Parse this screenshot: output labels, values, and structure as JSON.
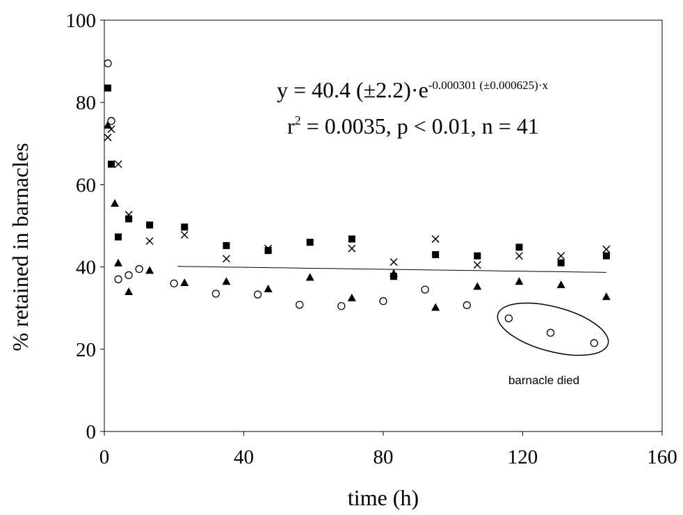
{
  "chart_data": {
    "type": "scatter",
    "title": "",
    "xlabel": "time (h)",
    "ylabel": "% retained in barnacles",
    "xlim": [
      0,
      160
    ],
    "ylim": [
      0,
      100
    ],
    "xticks": [
      0,
      40,
      80,
      120,
      160
    ],
    "yticks": [
      0,
      20,
      40,
      60,
      80,
      100
    ],
    "grid": false,
    "equation": {
      "main": "y = 40.4 (±2.2)·e",
      "exponent": "-0.000301 (±0.000625)·x",
      "stats_r": "r",
      "stats_sup": "2",
      "stats_rest": " = 0.0035, p < 0.01, n = 41"
    },
    "annotation": "barnacle died",
    "annotation_points": [
      [
        116,
        27.5
      ],
      [
        128,
        24
      ],
      [
        140.5,
        21.5
      ]
    ],
    "fit": {
      "a": 40.4,
      "b": -0.000301,
      "x_start": 21,
      "x_end": 144
    },
    "series": [
      {
        "marker": "circle",
        "points": [
          [
            1,
            89.5
          ],
          [
            2,
            75.5
          ],
          [
            4,
            37
          ],
          [
            7,
            38
          ],
          [
            10,
            39.5
          ],
          [
            20,
            36
          ],
          [
            32,
            33.5
          ],
          [
            44,
            33.3
          ],
          [
            56,
            30.8
          ],
          [
            68,
            30.5
          ],
          [
            80,
            31.7
          ],
          [
            92,
            34.5
          ],
          [
            104,
            30.7
          ],
          [
            116,
            27.5
          ],
          [
            128,
            24
          ],
          [
            140.5,
            21.5
          ]
        ]
      },
      {
        "marker": "square",
        "points": [
          [
            1,
            83.5
          ],
          [
            2,
            65
          ],
          [
            4,
            47.3
          ],
          [
            7,
            51.7
          ],
          [
            13,
            50.2
          ],
          [
            23,
            49.7
          ],
          [
            35,
            45.2
          ],
          [
            47,
            44
          ],
          [
            59,
            46
          ],
          [
            71,
            46.8
          ],
          [
            83,
            37.7
          ],
          [
            95,
            43
          ],
          [
            107,
            42.7
          ],
          [
            119,
            44.8
          ],
          [
            131,
            41
          ],
          [
            144,
            42.7
          ]
        ]
      },
      {
        "marker": "triangle",
        "points": [
          [
            1,
            74.5
          ],
          [
            3,
            55.5
          ],
          [
            4,
            41
          ],
          [
            7,
            34
          ],
          [
            13,
            39.2
          ],
          [
            23,
            36.2
          ],
          [
            35,
            36.5
          ],
          [
            47,
            34.7
          ],
          [
            59,
            37.5
          ],
          [
            71,
            32.5
          ],
          [
            83,
            38.5
          ],
          [
            95,
            30.2
          ],
          [
            107,
            35.3
          ],
          [
            119,
            36.5
          ],
          [
            131,
            35.7
          ],
          [
            144,
            32.8
          ]
        ]
      },
      {
        "marker": "cross",
        "points": [
          [
            1,
            71.5
          ],
          [
            2,
            73.5
          ],
          [
            4,
            65
          ],
          [
            7,
            52.7
          ],
          [
            13,
            46.3
          ],
          [
            23,
            47.8
          ],
          [
            35,
            42
          ],
          [
            47,
            44.5
          ],
          [
            71,
            44.5
          ],
          [
            83,
            41.2
          ],
          [
            95,
            46.8
          ],
          [
            107,
            40.5
          ],
          [
            119,
            42.7
          ],
          [
            131,
            42.7
          ],
          [
            144,
            44.3
          ]
        ]
      }
    ]
  }
}
